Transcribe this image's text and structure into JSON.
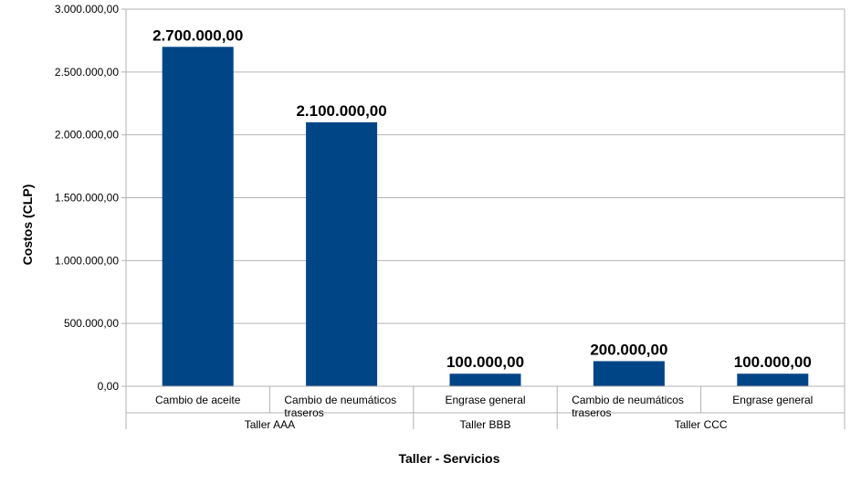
{
  "chart_data": {
    "type": "bar",
    "xlabel": "Taller - Servicios",
    "ylabel": "Costos (CLP)",
    "ylim": [
      0,
      3000000
    ],
    "y_ticks": [
      0,
      500000,
      1000000,
      1500000,
      2000000,
      2500000,
      3000000
    ],
    "y_tick_labels": [
      "0,00",
      "500.000,00",
      "1.000.000,00",
      "1.500.000,00",
      "2.000.000,00",
      "2.500.000,00",
      "3.000.000,00"
    ],
    "grid": true,
    "legend": "none",
    "bar_color": "#004586",
    "categories": [
      {
        "label": [
          "Cambio de aceite"
        ],
        "group": "Taller AAA"
      },
      {
        "label": [
          "Cambio de neumáticos",
          "traseros"
        ],
        "group": "Taller AAA"
      },
      {
        "label": [
          "Engrase general"
        ],
        "group": "Taller BBB"
      },
      {
        "label": [
          "Cambio de neumáticos",
          "traseros"
        ],
        "group": "Taller CCC"
      },
      {
        "label": [
          "Engrase general"
        ],
        "group": "Taller CCC"
      }
    ],
    "groups": [
      "Taller AAA",
      "Taller BBB",
      "Taller CCC"
    ],
    "values": [
      2700000,
      2100000,
      100000,
      200000,
      100000
    ],
    "data_labels": [
      "2.700.000,00",
      "2.100.000,00",
      "100.000,00",
      "200.000,00",
      "100.000,00"
    ]
  }
}
